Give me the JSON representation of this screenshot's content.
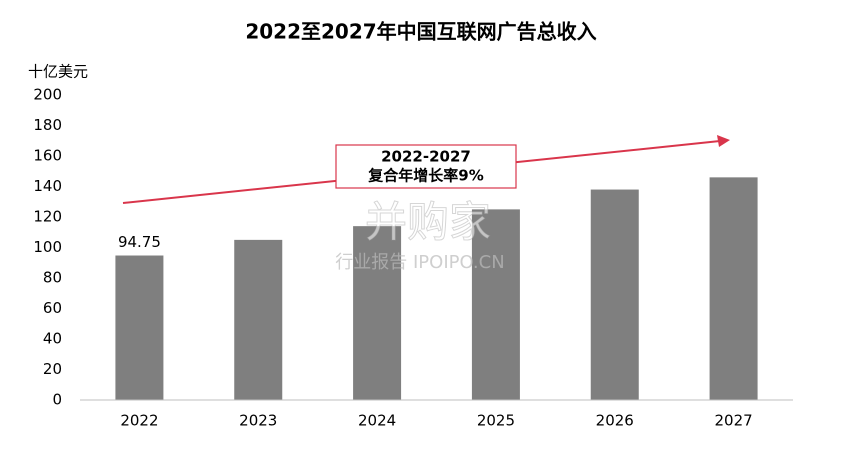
{
  "chart_data": {
    "type": "bar",
    "title": "2022至2027年中国互联网广告总收入",
    "y_label": "十亿美元",
    "categories": [
      "2022",
      "2023",
      "2024",
      "2025",
      "2026",
      "2027"
    ],
    "values": [
      94.75,
      105,
      114,
      125,
      138,
      146
    ],
    "value_labels": [
      "94.75",
      null,
      null,
      null,
      null,
      null
    ],
    "color": "#7f7f7f",
    "ylim": [
      0,
      200
    ],
    "yticks": [
      0,
      20,
      40,
      60,
      80,
      100,
      120,
      140,
      160,
      180,
      200
    ],
    "grid": false,
    "annotation": [
      "2022-2027",
      "复合年增长率9%"
    ],
    "annotation_color": "#d9354b",
    "watermark": [
      "并购家",
      "行业报告 IPOIPO.CN"
    ]
  }
}
